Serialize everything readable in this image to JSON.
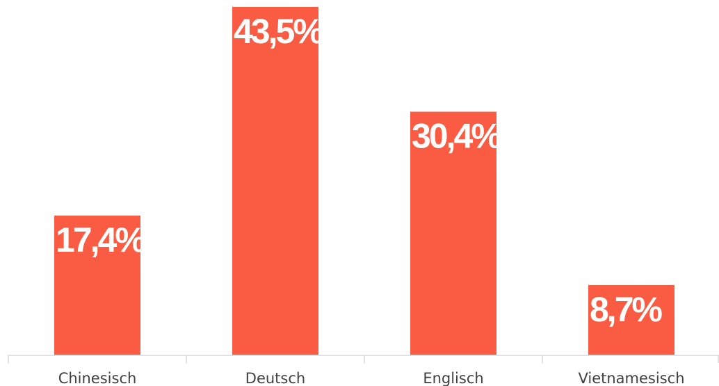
{
  "chart_data": {
    "type": "bar",
    "categories": [
      "Chinesisch",
      "Deutsch",
      "Englisch",
      "Vietnamesisch"
    ],
    "values": [
      17.4,
      43.5,
      30.4,
      8.7
    ],
    "value_labels": [
      "17,4%",
      "43,5%",
      "30,4%",
      "8,7%"
    ],
    "color": "#f95c42"
  }
}
